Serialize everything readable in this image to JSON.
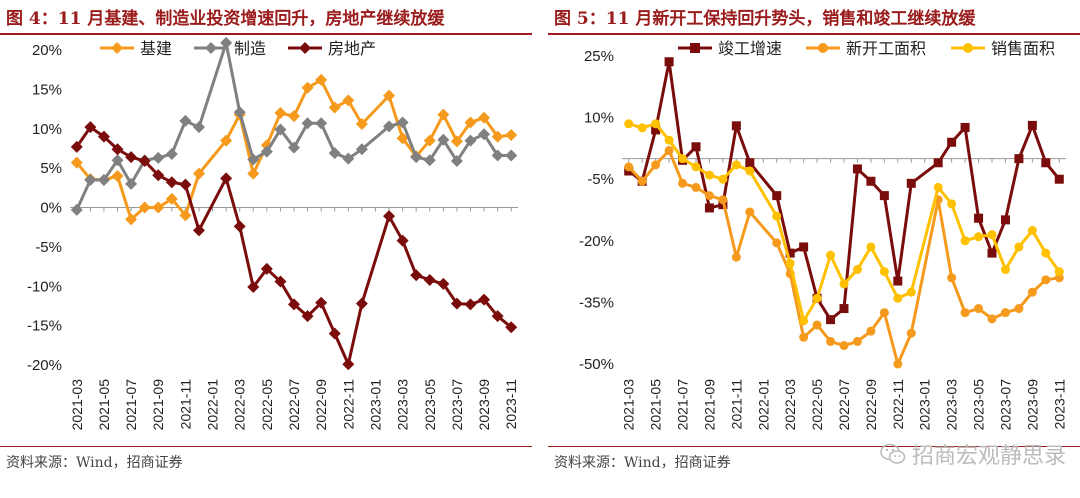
{
  "left": {
    "title": "图 4：11 月基建、制造业投资增速回升，房地产继续放缓",
    "source": "资料来源：Wind，招商证券",
    "chart_data": {
      "type": "line",
      "categories": [
        "2021-03",
        "2021-04",
        "2021-05",
        "2021-06",
        "2021-07",
        "2021-08",
        "2021-09",
        "2021-10",
        "2021-11",
        "2021-12",
        "2022-01",
        "2022-02",
        "2022-03",
        "2022-04",
        "2022-05",
        "2022-06",
        "2022-07",
        "2022-08",
        "2022-09",
        "2022-10",
        "2022-11",
        "2022-12",
        "2023-01",
        "2023-02",
        "2023-03",
        "2023-04",
        "2023-05",
        "2023-06",
        "2023-07",
        "2023-08",
        "2023-09",
        "2023-10",
        "2023-11"
      ],
      "tick_labels": [
        "2021-03",
        "2021-05",
        "2021-07",
        "2021-09",
        "2021-11",
        "2022-01",
        "2022-03",
        "2022-05",
        "2022-07",
        "2022-09",
        "2022-11",
        "2023-01",
        "2023-03",
        "2023-05",
        "2023-07",
        "2023-09",
        "2023-11"
      ],
      "ylim": [
        -20,
        20
      ],
      "yticks": [
        "-20%",
        "-15%",
        "-10%",
        "-5%",
        "0%",
        "5%",
        "10%",
        "15%",
        "20%"
      ],
      "legend_position": "top",
      "series": [
        {
          "name": "基建",
          "color": "#f59a1c",
          "marker": "diamond",
          "values": [
            5.7,
            3.6,
            3.5,
            4.0,
            -1.5,
            0.0,
            0.0,
            1.1,
            -1.0,
            4.3,
            null,
            8.5,
            11.8,
            4.3,
            7.9,
            12.0,
            11.6,
            15.2,
            16.2,
            12.7,
            13.6,
            10.6,
            null,
            14.2,
            8.8,
            6.5,
            8.5,
            11.8,
            8.4,
            10.8,
            11.4,
            9.0,
            9.2
          ]
        },
        {
          "name": "制造",
          "color": "#808080",
          "marker": "diamond",
          "values": [
            -0.3,
            3.5,
            3.5,
            6.0,
            3.0,
            6.0,
            6.3,
            6.8,
            11.0,
            10.2,
            null,
            20.9,
            12.1,
            6.1,
            7.1,
            9.9,
            7.6,
            10.7,
            10.7,
            6.9,
            6.2,
            7.4,
            null,
            10.3,
            10.8,
            6.4,
            6.0,
            8.6,
            5.9,
            8.5,
            9.3,
            6.6,
            6.6
          ]
        },
        {
          "name": "房地产",
          "color": "#7b0c0c",
          "marker": "diamond",
          "values": [
            7.7,
            10.2,
            9.0,
            7.4,
            6.4,
            5.9,
            4.1,
            3.2,
            2.9,
            -2.9,
            null,
            3.7,
            -2.4,
            -10.1,
            -7.8,
            -9.4,
            -12.3,
            -13.8,
            -12.1,
            -16.0,
            -19.9,
            -12.2,
            null,
            -1.1,
            -4.2,
            -8.6,
            -9.2,
            -9.7,
            -12.2,
            -12.3,
            -11.7,
            -13.8,
            -15.2
          ]
        }
      ]
    }
  },
  "right": {
    "title": "图 5：11 月新开工保持回升势头，销售和竣工继续放缓",
    "source": "资料来源：Wind，招商证券",
    "chart_data": {
      "type": "line",
      "categories": [
        "2021-03",
        "2021-04",
        "2021-05",
        "2021-06",
        "2021-07",
        "2021-08",
        "2021-09",
        "2021-10",
        "2021-11",
        "2021-12",
        "2022-01",
        "2022-02",
        "2022-03",
        "2022-04",
        "2022-05",
        "2022-06",
        "2022-07",
        "2022-08",
        "2022-09",
        "2022-10",
        "2022-11",
        "2022-12",
        "2023-01",
        "2023-02",
        "2023-03",
        "2023-04",
        "2023-05",
        "2023-06",
        "2023-07",
        "2023-08",
        "2023-09",
        "2023-10",
        "2023-11"
      ],
      "tick_labels": [
        "2021-03",
        "2021-05",
        "2021-07",
        "2021-09",
        "2021-11",
        "2022-01",
        "2022-03",
        "2022-05",
        "2022-07",
        "2022-09",
        "2022-11",
        "2023-01",
        "2023-03",
        "2023-05",
        "2023-07",
        "2023-09",
        "2023-11"
      ],
      "ylim": [
        -50,
        25
      ],
      "yticks": [
        "-50%",
        "-35%",
        "-20%",
        "-5%",
        "10%",
        "25%"
      ],
      "legend_position": "top",
      "series": [
        {
          "name": "竣工增速",
          "color": "#7b0c0c",
          "marker": "square",
          "values": [
            -3.0,
            -5.5,
            7.0,
            23.6,
            -0.4,
            2.9,
            -12.0,
            -11.2,
            8.0,
            -1.0,
            null,
            -9.0,
            -23.0,
            -21.5,
            -34.0,
            -39.2,
            -36.5,
            -2.5,
            -5.5,
            -9.0,
            -29.8,
            -6.0,
            null,
            -1.0,
            4.0,
            7.6,
            -14.5,
            -23.0,
            -14.9,
            0.0,
            8.1,
            -1.0,
            -5.0
          ]
        },
        {
          "name": "新开工面积",
          "color": "#f59a1c",
          "marker": "circle",
          "values": [
            -2.0,
            -5.5,
            -1.5,
            2.0,
            -6.0,
            -7.0,
            -9.0,
            -10.0,
            -24.0,
            -13.0,
            null,
            -20.5,
            -28.0,
            -43.5,
            -40.5,
            -44.5,
            -45.5,
            -44.5,
            -42.0,
            -37.5,
            -50.0,
            -42.5,
            null,
            -10.0,
            -29.0,
            -37.5,
            -36.5,
            -39.0,
            -37.5,
            -36.5,
            -32.5,
            -29.5,
            -29.0
          ]
        },
        {
          "name": "销售面积",
          "color": "#ffc000",
          "marker": "circle",
          "values": [
            8.5,
            7.5,
            8.5,
            4.5,
            0.0,
            -2.0,
            -4.0,
            -5.0,
            -1.5,
            -3.0,
            null,
            -14.0,
            -25.5,
            -39.5,
            -34.0,
            -23.5,
            -30.5,
            -27.0,
            -21.5,
            -27.5,
            -34.0,
            -32.5,
            null,
            -7.0,
            -11.0,
            -20.0,
            -19.0,
            -18.5,
            -27.0,
            -21.5,
            -17.5,
            -23.0,
            -27.5
          ]
        }
      ]
    }
  },
  "watermark": {
    "text": "招商宏观静思录",
    "icon": "wechat-icon"
  }
}
